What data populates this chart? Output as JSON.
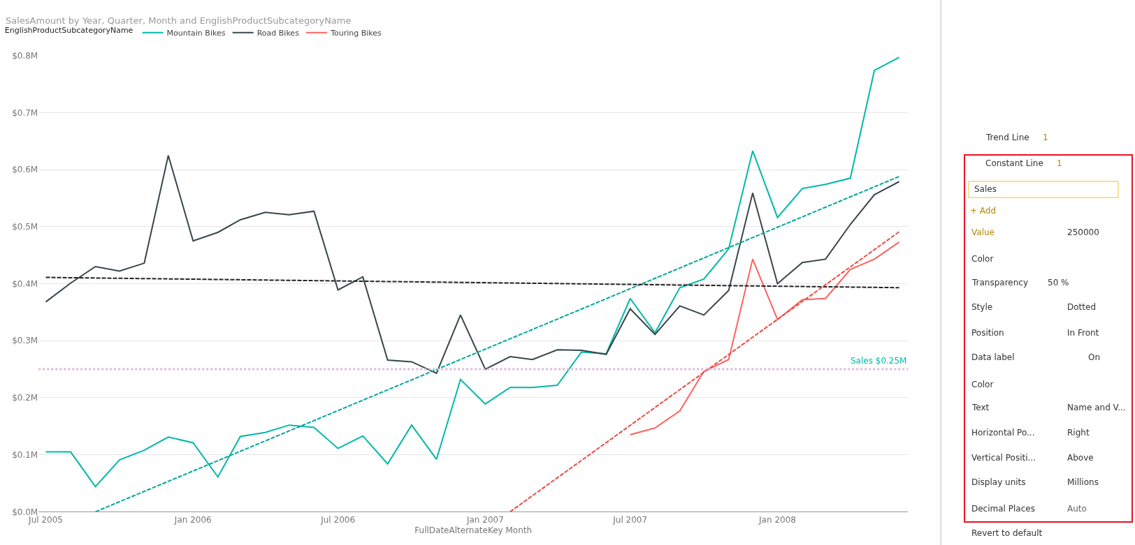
{
  "chart_data": [
    {
      "type": "line",
      "title": "SalesAmount by Year, Quarter, Month and EnglishProductSubcategoryName",
      "xlabel": "FullDateAlternateKey Month",
      "legend_title": "EnglishProductSubcategoryName",
      "legend": "top left",
      "grid": "y",
      "marker": "none",
      "line_style": "solid",
      "x": [
        "2005-07",
        "2005-08",
        "2005-09",
        "2005-10",
        "2005-11",
        "2005-12",
        "2006-01",
        "2006-02",
        "2006-03",
        "2006-04",
        "2006-05",
        "2006-06",
        "2006-07",
        "2006-08",
        "2006-09",
        "2006-10",
        "2006-11",
        "2006-12",
        "2007-01",
        "2007-02",
        "2007-03",
        "2007-04",
        "2007-05",
        "2007-06",
        "2007-07",
        "2007-08",
        "2007-09",
        "2007-10",
        "2007-11",
        "2007-12",
        "2008-01",
        "2008-02",
        "2008-03",
        "2008-04",
        "2008-05",
        "2008-06"
      ],
      "series": [
        {
          "name": "Mountain Bikes",
          "color": "#01b8aa",
          "values": [
            0.105,
            0.105,
            0.044,
            0.091,
            0.108,
            0.131,
            0.121,
            0.061,
            0.132,
            0.139,
            0.152,
            0.148,
            0.111,
            0.133,
            0.084,
            0.152,
            0.092,
            0.232,
            0.189,
            0.218,
            0.218,
            0.222,
            0.28,
            0.277,
            0.374,
            0.314,
            0.393,
            0.408,
            0.461,
            0.633,
            0.516,
            0.567,
            0.574,
            0.585,
            0.774,
            0.797
          ]
        },
        {
          "name": "Road Bikes",
          "color": "#374649",
          "values": [
            0.368,
            0.401,
            0.43,
            0.422,
            0.436,
            0.625,
            0.475,
            0.49,
            0.512,
            0.525,
            0.521,
            0.527,
            0.389,
            0.412,
            0.266,
            0.263,
            0.243,
            0.345,
            0.25,
            0.272,
            0.267,
            0.284,
            0.283,
            0.276,
            0.356,
            0.311,
            0.361,
            0.345,
            0.388,
            0.559,
            0.4,
            0.437,
            0.443,
            0.504,
            0.556,
            0.579
          ]
        },
        {
          "name": "Touring Bikes",
          "color": "#fd625e",
          "values": [
            null,
            null,
            null,
            null,
            null,
            null,
            null,
            null,
            null,
            null,
            null,
            null,
            null,
            null,
            null,
            null,
            null,
            null,
            null,
            null,
            null,
            null,
            null,
            null,
            0.135,
            0.147,
            0.177,
            0.246,
            0.267,
            0.443,
            0.337,
            0.372,
            0.374,
            0.425,
            0.443,
            0.473
          ]
        },
        {
          "color": "#01a89b",
          "line_style": "dashed",
          "x": [
            "2005-09",
            "2008-06"
          ],
          "values": [
            0.0,
            0.588
          ]
        },
        {
          "color": "#222222",
          "line_style": "dashed",
          "x": [
            "2005-07",
            "2008-06"
          ],
          "values": [
            0.411,
            0.393
          ]
        },
        {
          "color": "#f04a44",
          "line_style": "dashed",
          "x": [
            "2007-02",
            "2008-06"
          ],
          "values": [
            0.0,
            0.491
          ]
        }
      ],
      "ref_lines": [
        {
          "axis": "y",
          "value": 0.25,
          "label": "Sales $0.25M",
          "color": "#dcbad6",
          "line_style": "dotted"
        }
      ],
      "xlim": [
        "2005-06-22",
        "2008-06-12"
      ],
      "xticks": [
        {
          "value": "2005-07",
          "label": "Jul 2005"
        },
        {
          "value": "2006-01",
          "label": "Jan 2006"
        },
        {
          "value": "2006-07",
          "label": "Jul 2006"
        },
        {
          "value": "2007-01",
          "label": "Jan 2007"
        },
        {
          "value": "2007-07",
          "label": "Jul 2007"
        },
        {
          "value": "2008-01",
          "label": "Jan 2008"
        }
      ],
      "ylim": [
        0,
        0.8
      ],
      "yticks": [
        {
          "value": 0,
          "label": "$0.0M"
        },
        {
          "value": 0.1,
          "label": "$0.1M"
        },
        {
          "value": 0.2,
          "label": "$0.2M"
        },
        {
          "value": 0.3,
          "label": "$0.3M"
        },
        {
          "value": 0.4,
          "label": "$0.4M"
        },
        {
          "value": 0.5,
          "label": "$0.5M"
        },
        {
          "value": 0.6,
          "label": "$0.6M"
        },
        {
          "value": 0.7,
          "label": "$0.7M"
        },
        {
          "value": 0.8,
          "label": "$0.8M"
        }
      ]
    },
    {
      "type": "other",
      "annotations": [
        "Trend Line",
        "1",
        "Constant Line",
        "1",
        "Sales",
        "+ Add",
        "Value",
        "250000",
        "Color",
        "Transparency",
        "50 %",
        "Style",
        "Dotted",
        "Position",
        "In Front",
        "Data label",
        "On",
        "Color",
        "Text",
        "Name and V...",
        "Horizontal Po...",
        "Right",
        "Vertical Positi...",
        "Above",
        "Display units",
        "Millions",
        "Decimal Places",
        "Auto",
        "Revert to default"
      ]
    }
  ]
}
